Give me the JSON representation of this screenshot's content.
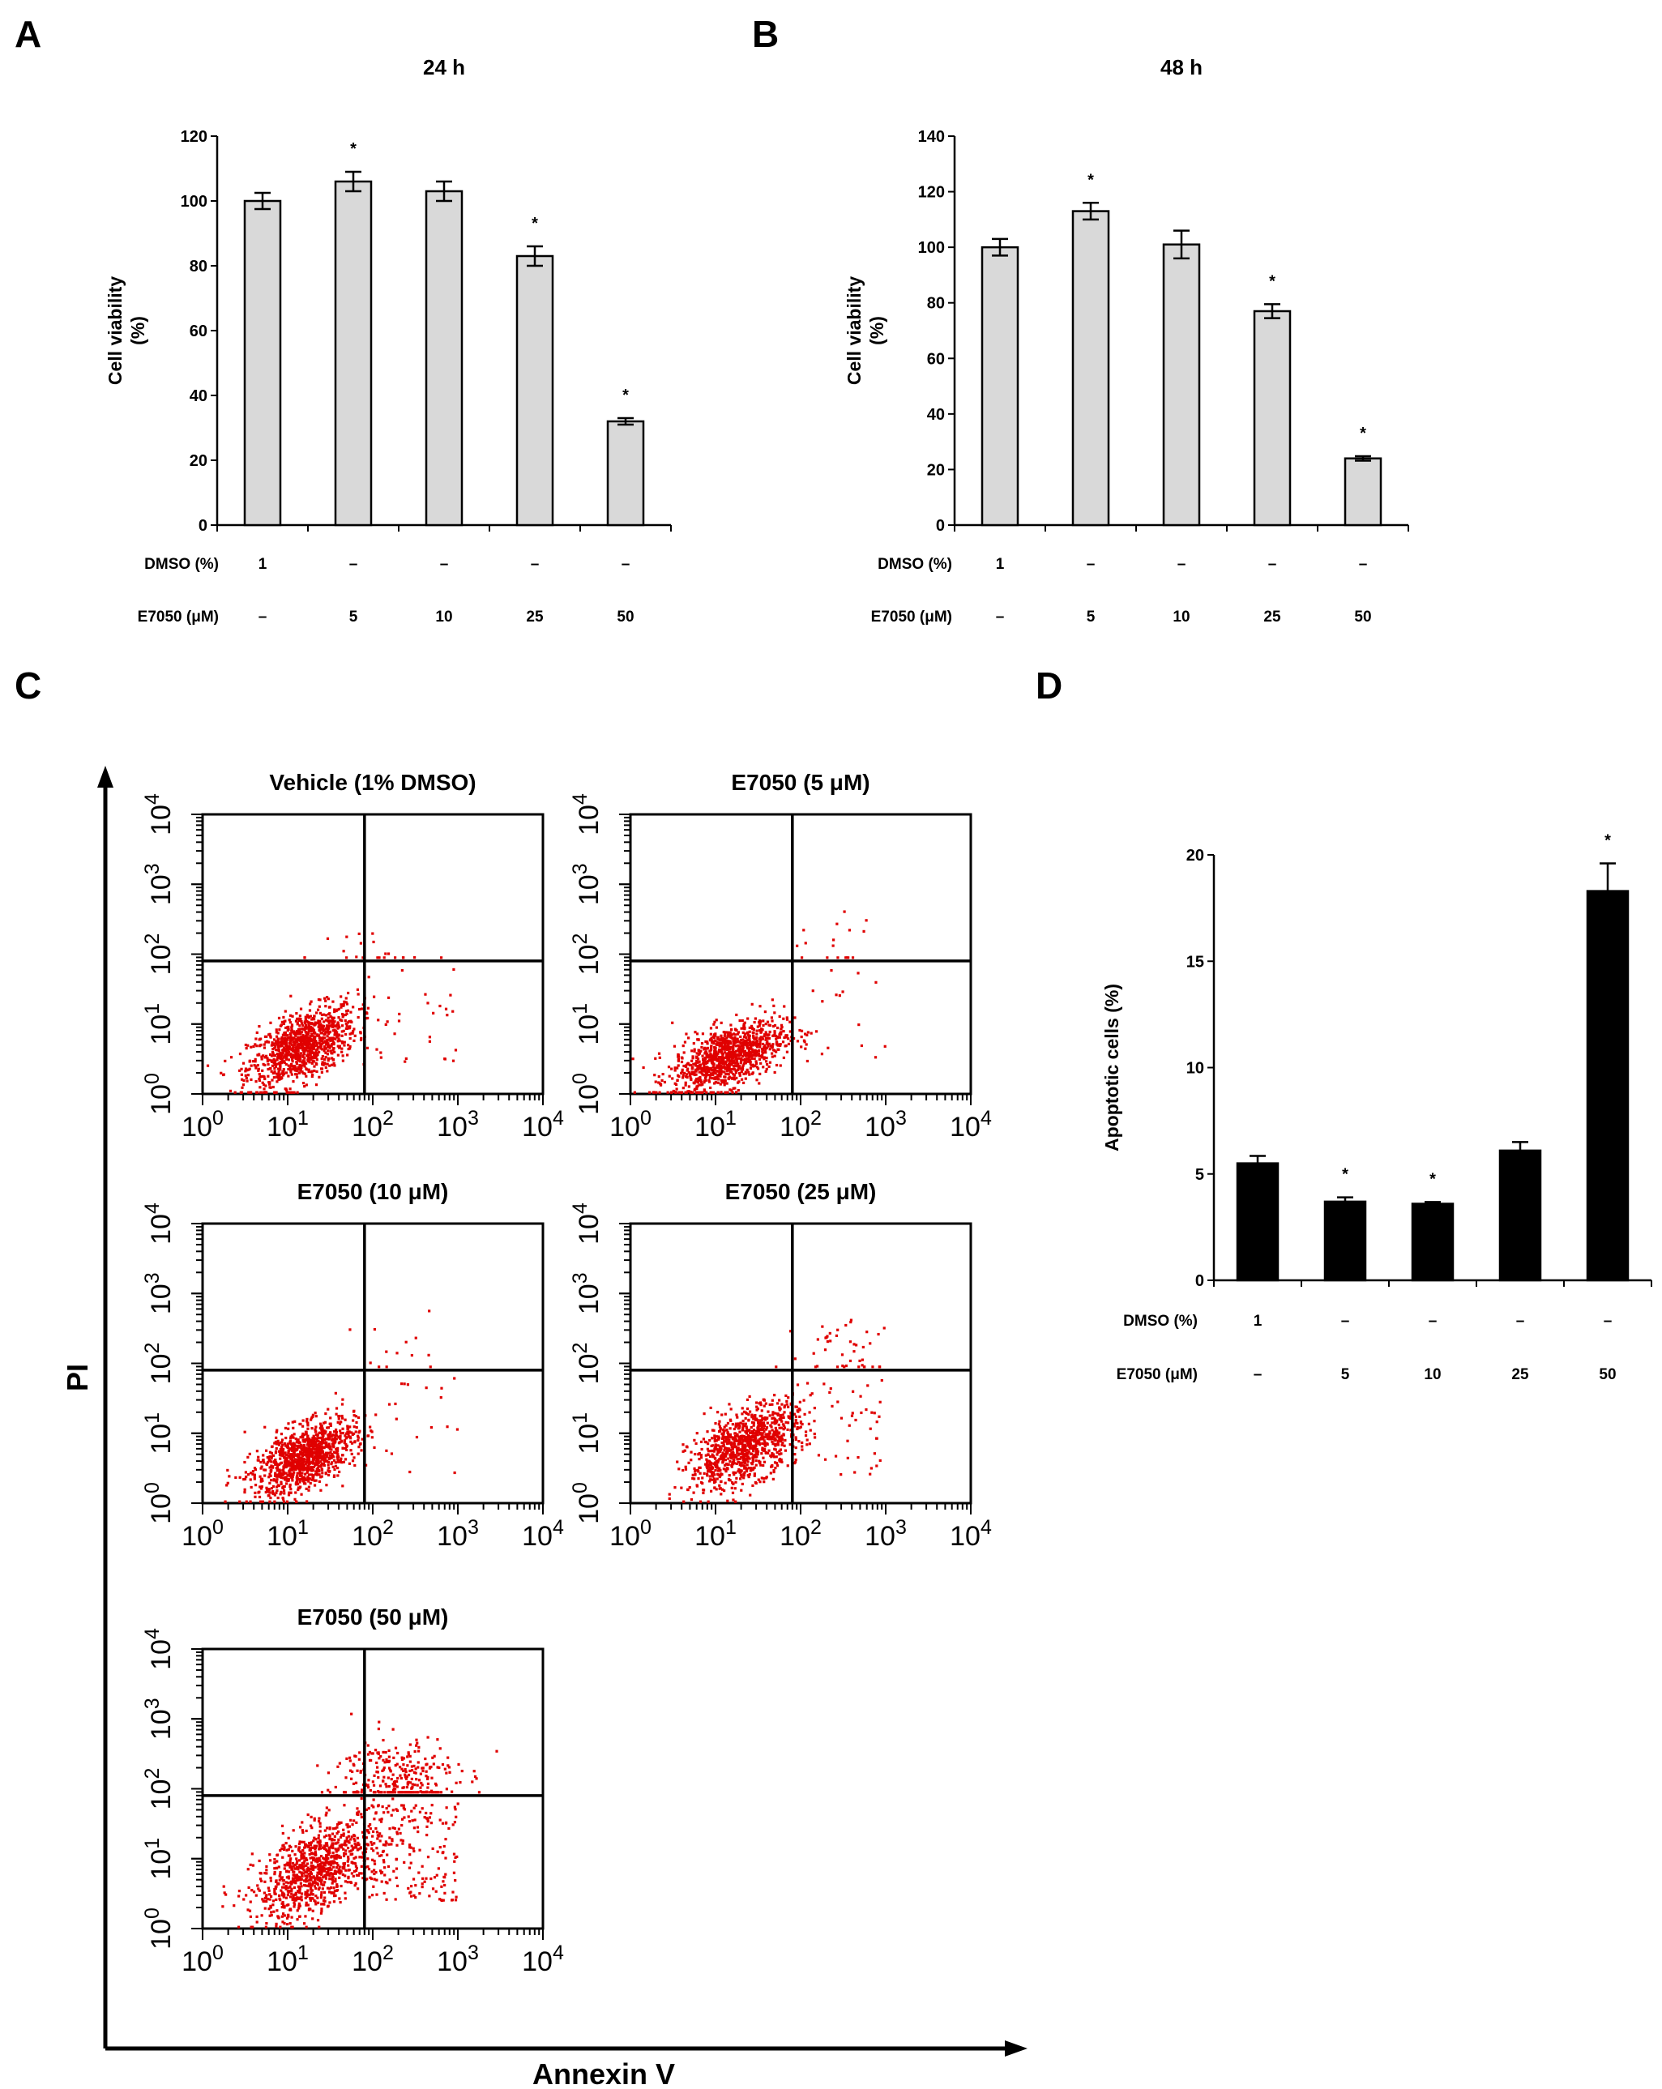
{
  "panels": {
    "A": "A",
    "B": "B",
    "C": "C",
    "D": "D"
  },
  "chart_data": [
    {
      "panel": "A",
      "type": "bar",
      "title": "24 h",
      "ylabel_lines": [
        "Cell viability",
        "(%)"
      ],
      "xlabel": "",
      "ylim": [
        0,
        120
      ],
      "yticks": [
        0,
        20,
        40,
        60,
        80,
        100,
        120
      ],
      "categories": [
        "DMSO 1%",
        "E7050 5 µM",
        "E7050 10 µM",
        "E7050 25 µM",
        "E7050 50 µM"
      ],
      "values": [
        100,
        106,
        103,
        83,
        32
      ],
      "errors": [
        2.5,
        3,
        3,
        3,
        1
      ],
      "significant": [
        false,
        true,
        false,
        true,
        true
      ],
      "bar_color": "#d9d9d9",
      "treatment_rows": [
        {
          "label": "DMSO (%)",
          "values": [
            "1",
            "–",
            "–",
            "–",
            "–"
          ]
        },
        {
          "label": "E7050 (μM)",
          "values": [
            "–",
            "5",
            "10",
            "25",
            "50"
          ]
        }
      ]
    },
    {
      "panel": "B",
      "type": "bar",
      "title": "48 h",
      "ylabel_lines": [
        "Cell viability",
        "(%)"
      ],
      "xlabel": "",
      "ylim": [
        0,
        140
      ],
      "yticks": [
        0,
        20,
        40,
        60,
        80,
        100,
        120,
        140
      ],
      "categories": [
        "DMSO 1%",
        "E7050 5 µM",
        "E7050 10 µM",
        "E7050 25 µM",
        "E7050 50 µM"
      ],
      "values": [
        100,
        113,
        101,
        77,
        24
      ],
      "errors": [
        3,
        3,
        5,
        2.5,
        0.8
      ],
      "significant": [
        false,
        true,
        false,
        true,
        true
      ],
      "bar_color": "#d9d9d9",
      "treatment_rows": [
        {
          "label": "DMSO (%)",
          "values": [
            "1",
            "–",
            "–",
            "–",
            "–"
          ]
        },
        {
          "label": "E7050 (μM)",
          "values": [
            "–",
            "5",
            "10",
            "25",
            "50"
          ]
        }
      ]
    },
    {
      "panel": "C",
      "type": "scatter",
      "xlabel": "Annexin V",
      "ylabel": "PI",
      "x_scale": "log",
      "y_scale": "log",
      "xlim": [
        1,
        10000
      ],
      "ylim": [
        1,
        10000
      ],
      "quadrant_gate": {
        "x": 80,
        "y": 80
      },
      "tick_exponents": [
        "0",
        "1",
        "2",
        "3",
        "4"
      ],
      "tick_base": "10",
      "point_color": "#e00000",
      "plots": [
        {
          "title": "Vehicle (1% DMSO)",
          "n_points": 1100,
          "live_center": [
            15,
            4.8
          ],
          "live_spread": [
            0.32,
            0.29
          ],
          "early_fraction": 0.025,
          "late_fraction": 0.02,
          "late_center": [
            150,
            70
          ]
        },
        {
          "title": "E7050 (5 μM)",
          "n_points": 1100,
          "live_center": [
            14,
            3.4
          ],
          "live_spread": [
            0.33,
            0.26
          ],
          "early_fraction": 0.015,
          "late_fraction": 0.015,
          "late_center": [
            250,
            120
          ]
        },
        {
          "title": "E7050 (10 μM)",
          "n_points": 1100,
          "live_center": [
            16,
            4.5
          ],
          "live_spread": [
            0.3,
            0.27
          ],
          "early_fraction": 0.015,
          "late_fraction": 0.012,
          "late_center": [
            200,
            110
          ]
        },
        {
          "title": "E7050 (25 μM)",
          "n_points": 1100,
          "live_center": [
            22,
            6.5
          ],
          "live_spread": [
            0.32,
            0.3
          ],
          "early_fraction": 0.045,
          "late_fraction": 0.04,
          "late_center": [
            350,
            160
          ]
        },
        {
          "title": "E7050 (50 μM)",
          "n_points": 1400,
          "live_center": [
            22,
            7
          ],
          "live_spread": [
            0.36,
            0.36
          ],
          "early_fraction": 0.13,
          "late_fraction": 0.2,
          "late_center": [
            200,
            150
          ]
        }
      ]
    },
    {
      "panel": "D",
      "type": "bar",
      "title": "",
      "ylabel": "Apoptotic cells (%)",
      "xlabel": "",
      "ylim": [
        0,
        20
      ],
      "yticks": [
        0,
        5,
        10,
        15,
        20
      ],
      "categories": [
        "DMSO 1%",
        "E7050 5 µM",
        "E7050 10 µM",
        "E7050 25 µM",
        "E7050 50 µM"
      ],
      "values": [
        5.5,
        3.7,
        3.6,
        6.1,
        18.3
      ],
      "errors": [
        0.35,
        0.2,
        0.08,
        0.4,
        1.3
      ],
      "significant": [
        false,
        true,
        true,
        false,
        true
      ],
      "bar_color": "#000000",
      "treatment_rows": [
        {
          "label": "DMSO (%)",
          "values": [
            "1",
            "–",
            "–",
            "–",
            "–"
          ]
        },
        {
          "label": "E7050 (μM)",
          "values": [
            "–",
            "5",
            "10",
            "25",
            "50"
          ]
        }
      ]
    }
  ]
}
